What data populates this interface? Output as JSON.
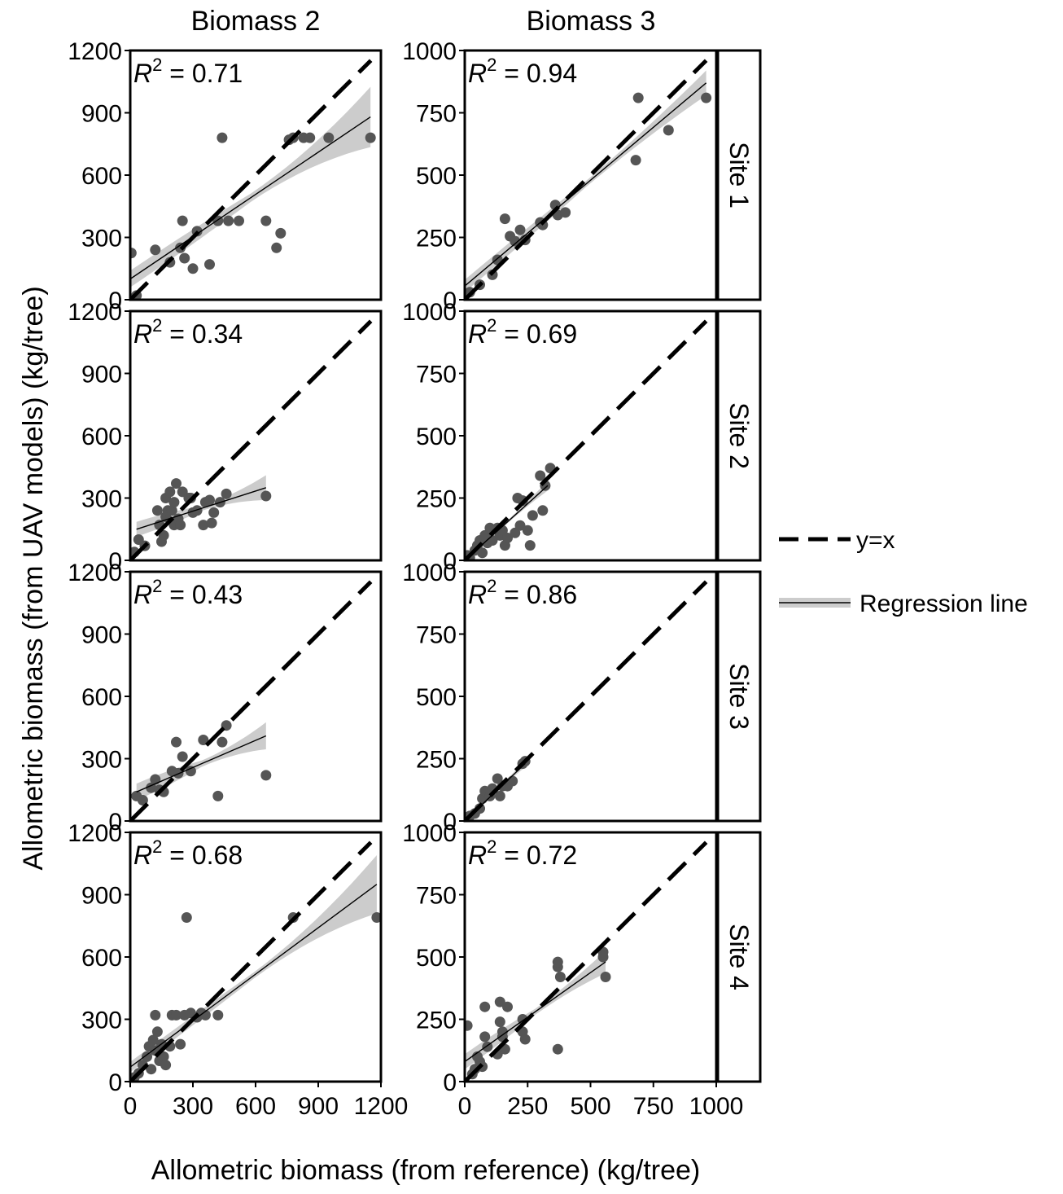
{
  "chart_data": {
    "type": "scatter",
    "xlabel": "Allometric biomass (from reference) (kg/tree)",
    "ylabel": "Allometric biomass (from UAV models) (kg/tree)",
    "columns": [
      "Biomass 2",
      "Biomass 3"
    ],
    "rows": [
      "Site 1",
      "Site 2",
      "Site 3",
      "Site 4"
    ],
    "r2_prefix": "R",
    "r2_exponent": "2",
    "legend": {
      "placement": "right",
      "items": [
        {
          "label": "y=x",
          "style": "dashed"
        },
        {
          "label": "Regression line",
          "style": "line-with-ribbon"
        }
      ]
    },
    "axes": {
      "Biomass 2": {
        "xlim": [
          0,
          1200
        ],
        "ylim": [
          0,
          1200
        ],
        "ticks": [
          0,
          300,
          600,
          900,
          1200
        ]
      },
      "Biomass 3": {
        "xlim": [
          0,
          1000
        ],
        "ylim": [
          0,
          1000
        ],
        "ticks": [
          0,
          250,
          500,
          750,
          1000
        ]
      }
    },
    "colors": {
      "points": "#555555",
      "ribbon": "#cccccc",
      "line": "#000000"
    },
    "panels": [
      {
        "column": "Biomass 2",
        "row": "Site 1",
        "r2": "0.71",
        "fit": [
          0,
          100,
          1150,
          880
        ],
        "ribbon_halfwidth": [
          40,
          20,
          145
        ],
        "points": [
          [
            5,
            225
          ],
          [
            30,
            20
          ],
          [
            120,
            240
          ],
          [
            190,
            180
          ],
          [
            240,
            250
          ],
          [
            250,
            380
          ],
          [
            260,
            200
          ],
          [
            300,
            150
          ],
          [
            320,
            330
          ],
          [
            380,
            170
          ],
          [
            420,
            380
          ],
          [
            440,
            780
          ],
          [
            470,
            380
          ],
          [
            520,
            380
          ],
          [
            650,
            380
          ],
          [
            700,
            250
          ],
          [
            720,
            320
          ],
          [
            760,
            770
          ],
          [
            780,
            780
          ],
          [
            830,
            780
          ],
          [
            860,
            780
          ],
          [
            950,
            780
          ],
          [
            1150,
            780
          ]
        ]
      },
      {
        "column": "Biomass 3",
        "row": "Site 1",
        "r2": "0.94",
        "fit": [
          0,
          55,
          960,
          870
        ],
        "ribbon_halfwidth": [
          25,
          12,
          50
        ],
        "points": [
          [
            20,
            30
          ],
          [
            60,
            60
          ],
          [
            110,
            100
          ],
          [
            130,
            160
          ],
          [
            160,
            325
          ],
          [
            180,
            255
          ],
          [
            200,
            235
          ],
          [
            220,
            280
          ],
          [
            240,
            240
          ],
          [
            300,
            310
          ],
          [
            310,
            300
          ],
          [
            360,
            380
          ],
          [
            370,
            340
          ],
          [
            400,
            350
          ],
          [
            680,
            560
          ],
          [
            690,
            810
          ],
          [
            810,
            680
          ],
          [
            960,
            810
          ]
        ]
      },
      {
        "column": "Biomass 2",
        "row": "Site 2",
        "r2": "0.34",
        "fit": [
          30,
          150,
          650,
          350
        ],
        "ribbon_halfwidth": [
          35,
          12,
          60
        ],
        "points": [
          [
            20,
            40
          ],
          [
            40,
            100
          ],
          [
            70,
            70
          ],
          [
            130,
            240
          ],
          [
            140,
            170
          ],
          [
            150,
            90
          ],
          [
            160,
            120
          ],
          [
            170,
            210
          ],
          [
            170,
            300
          ],
          [
            180,
            240
          ],
          [
            190,
            330
          ],
          [
            200,
            240
          ],
          [
            210,
            280
          ],
          [
            210,
            170
          ],
          [
            220,
            370
          ],
          [
            230,
            200
          ],
          [
            240,
            170
          ],
          [
            250,
            330
          ],
          [
            280,
            300
          ],
          [
            290,
            300
          ],
          [
            300,
            230
          ],
          [
            320,
            240
          ],
          [
            350,
            170
          ],
          [
            360,
            280
          ],
          [
            380,
            290
          ],
          [
            390,
            180
          ],
          [
            400,
            230
          ],
          [
            430,
            280
          ],
          [
            460,
            320
          ],
          [
            650,
            310
          ]
        ]
      },
      {
        "column": "Biomass 3",
        "row": "Site 2",
        "r2": "0.69",
        "fit": [
          0,
          0,
          330,
          300
        ],
        "ribbon_halfwidth": [
          10,
          6,
          20
        ],
        "points": [
          [
            10,
            20
          ],
          [
            20,
            10
          ],
          [
            40,
            40
          ],
          [
            50,
            60
          ],
          [
            60,
            80
          ],
          [
            70,
            30
          ],
          [
            80,
            100
          ],
          [
            90,
            70
          ],
          [
            100,
            130
          ],
          [
            110,
            80
          ],
          [
            130,
            130
          ],
          [
            140,
            100
          ],
          [
            150,
            120
          ],
          [
            160,
            60
          ],
          [
            170,
            90
          ],
          [
            200,
            110
          ],
          [
            210,
            250
          ],
          [
            220,
            140
          ],
          [
            230,
            240
          ],
          [
            250,
            120
          ],
          [
            260,
            60
          ],
          [
            270,
            180
          ],
          [
            300,
            340
          ],
          [
            310,
            200
          ],
          [
            320,
            300
          ],
          [
            340,
            370
          ]
        ]
      },
      {
        "column": "Biomass 2",
        "row": "Site 3",
        "r2": "0.43",
        "fit": [
          30,
          140,
          650,
          410
        ],
        "ribbon_halfwidth": [
          40,
          15,
          65
        ],
        "points": [
          [
            30,
            120
          ],
          [
            60,
            100
          ],
          [
            100,
            160
          ],
          [
            120,
            200
          ],
          [
            140,
            150
          ],
          [
            160,
            140
          ],
          [
            200,
            240
          ],
          [
            220,
            380
          ],
          [
            230,
            230
          ],
          [
            250,
            310
          ],
          [
            290,
            240
          ],
          [
            350,
            390
          ],
          [
            420,
            120
          ],
          [
            440,
            380
          ],
          [
            460,
            460
          ],
          [
            650,
            220
          ]
        ]
      },
      {
        "column": "Biomass 3",
        "row": "Site 3",
        "r2": "0.86",
        "fit": [
          0,
          0,
          240,
          230
        ],
        "ribbon_halfwidth": [
          8,
          5,
          14
        ],
        "points": [
          [
            10,
            10
          ],
          [
            20,
            20
          ],
          [
            40,
            30
          ],
          [
            60,
            50
          ],
          [
            70,
            90
          ],
          [
            80,
            120
          ],
          [
            100,
            100
          ],
          [
            110,
            130
          ],
          [
            130,
            170
          ],
          [
            140,
            100
          ],
          [
            150,
            140
          ],
          [
            170,
            140
          ],
          [
            190,
            160
          ],
          [
            230,
            230
          ],
          [
            240,
            240
          ]
        ]
      },
      {
        "column": "Biomass 2",
        "row": "Site 4",
        "r2": "0.68",
        "fit": [
          0,
          70,
          1180,
          950
        ],
        "ribbon_halfwidth": [
          25,
          15,
          140
        ],
        "points": [
          [
            20,
            20
          ],
          [
            40,
            40
          ],
          [
            60,
            80
          ],
          [
            80,
            120
          ],
          [
            90,
            170
          ],
          [
            100,
            60
          ],
          [
            110,
            200
          ],
          [
            120,
            150
          ],
          [
            120,
            320
          ],
          [
            130,
            240
          ],
          [
            140,
            100
          ],
          [
            150,
            180
          ],
          [
            160,
            120
          ],
          [
            170,
            80
          ],
          [
            190,
            170
          ],
          [
            200,
            320
          ],
          [
            220,
            320
          ],
          [
            240,
            180
          ],
          [
            260,
            320
          ],
          [
            270,
            790
          ],
          [
            290,
            330
          ],
          [
            320,
            310
          ],
          [
            340,
            330
          ],
          [
            360,
            320
          ],
          [
            420,
            320
          ],
          [
            780,
            790
          ],
          [
            1180,
            790
          ]
        ]
      },
      {
        "column": "Biomass 3",
        "row": "Site 4",
        "r2": "0.72",
        "fit": [
          0,
          80,
          560,
          480
        ],
        "ribbon_halfwidth": [
          30,
          12,
          45
        ],
        "points": [
          [
            10,
            225
          ],
          [
            30,
            30
          ],
          [
            40,
            50
          ],
          [
            50,
            100
          ],
          [
            60,
            80
          ],
          [
            70,
            60
          ],
          [
            80,
            180
          ],
          [
            80,
            300
          ],
          [
            90,
            140
          ],
          [
            130,
            110
          ],
          [
            140,
            320
          ],
          [
            140,
            240
          ],
          [
            150,
            200
          ],
          [
            150,
            180
          ],
          [
            160,
            130
          ],
          [
            170,
            300
          ],
          [
            230,
            200
          ],
          [
            230,
            250
          ],
          [
            240,
            170
          ],
          [
            370,
            130
          ],
          [
            370,
            460
          ],
          [
            370,
            480
          ],
          [
            380,
            420
          ],
          [
            550,
            520
          ],
          [
            550,
            500
          ],
          [
            560,
            420
          ]
        ]
      }
    ]
  }
}
